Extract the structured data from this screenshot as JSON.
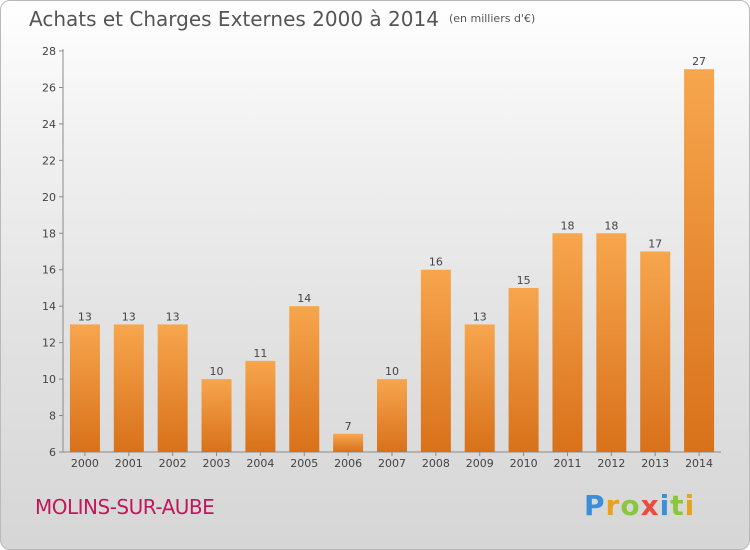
{
  "header": {
    "title": "Achats et Charges Externes 2000 à 2014",
    "unit": "(en milliers d'€)"
  },
  "footer": {
    "commune": "MOLINS-SUR-AUBE"
  },
  "logo": {
    "letters": [
      {
        "char": "P",
        "color": "#3b8fd9"
      },
      {
        "char": "r",
        "color": "#e8a21c"
      },
      {
        "char": "o",
        "color": "#8cc63f"
      },
      {
        "char": "x",
        "color": "#e84c3d"
      },
      {
        "char": "i",
        "color": "#3b8fd9"
      },
      {
        "char": "t",
        "color": "#8cc63f"
      },
      {
        "char": "i",
        "color": "#e8a21c"
      }
    ]
  },
  "chart_data": {
    "type": "bar",
    "categories": [
      "2000",
      "2001",
      "2002",
      "2003",
      "2004",
      "2005",
      "2006",
      "2007",
      "2008",
      "2009",
      "2010",
      "2011",
      "2012",
      "2013",
      "2014"
    ],
    "values": [
      13,
      13,
      13,
      10,
      11,
      14,
      7,
      10,
      16,
      13,
      15,
      18,
      18,
      17,
      27
    ],
    "ylim": [
      6,
      28
    ],
    "yticks": [
      6,
      8,
      10,
      12,
      14,
      16,
      18,
      20,
      22,
      24,
      26,
      28
    ],
    "grid": false,
    "bar_color_top": "#f7a64e",
    "bar_color_bottom": "#d8711a"
  }
}
